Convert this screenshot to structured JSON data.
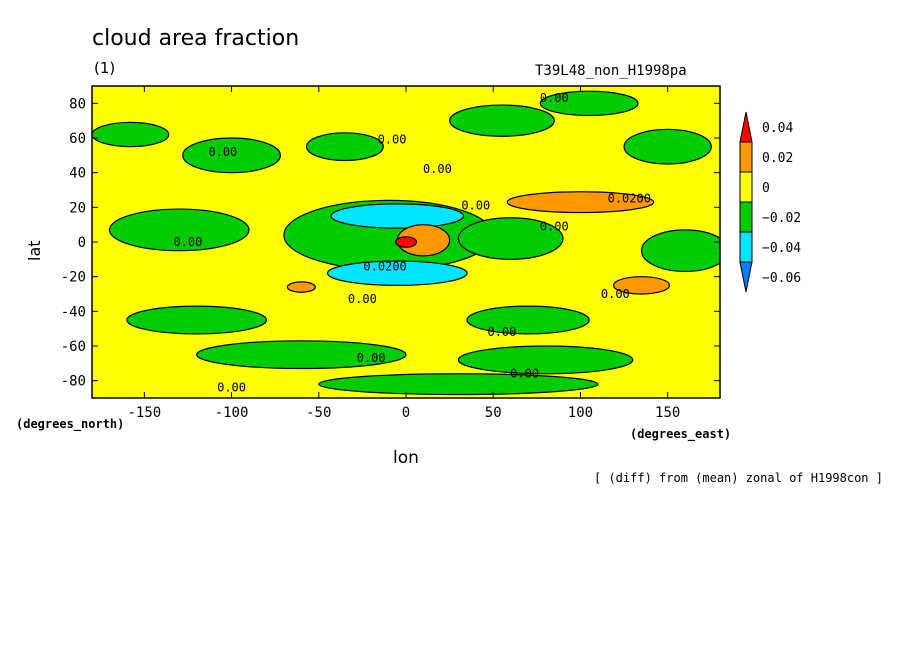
{
  "header": {
    "title": "cloud area fraction",
    "subtitle": "(1)",
    "experiment": "T39L48_non_H1998pa",
    "note": "[ (diff) from (mean) zonal of H1998con ]"
  },
  "colors": {
    "ocean_bg": "#ffff00",
    "pos1": "#ff9900",
    "pos2": "#ff0000",
    "neg1": "#00cc00",
    "neg2": "#00e5ff",
    "neg3": "#0080ff"
  },
  "chart_data": {
    "type": "heatmap",
    "title": "cloud area fraction",
    "subtitle": "(1)",
    "xlabel": "lon",
    "ylabel": "lat",
    "x_unit_label": "(degrees_east)",
    "y_unit_label": "(degrees_north)",
    "xlim": [
      -180,
      180
    ],
    "ylim": [
      -90,
      90
    ],
    "x_ticks": [
      -150,
      -100,
      -50,
      0,
      50,
      100,
      150
    ],
    "y_ticks": [
      -80,
      -60,
      -40,
      -20,
      0,
      20,
      40,
      60,
      80
    ],
    "x_tick_labels": [
      "-150",
      "-100",
      "-50",
      "0",
      "50",
      "100",
      "150"
    ],
    "y_tick_labels": [
      "-80",
      "-60",
      "-40",
      "-20",
      "0",
      "20",
      "40",
      "60",
      "80"
    ],
    "colorbar": {
      "levels": [
        0.04,
        0.02,
        0,
        -0.02,
        -0.04,
        -0.06
      ],
      "labels": [
        "0.04",
        "0.02",
        "0",
        "−0.02",
        "−0.04",
        "−0.06"
      ],
      "colors": [
        "#ff0000",
        "#ff9900",
        "#ffff00",
        "#00cc00",
        "#00e5ff",
        "#0080ff"
      ]
    },
    "contour_labels": [
      {
        "lon": 85,
        "lat": 83,
        "text": "0.00"
      },
      {
        "lon": -8,
        "lat": 59,
        "text": "0.00"
      },
      {
        "lon": -105,
        "lat": 52,
        "text": "0.00"
      },
      {
        "lon": 18,
        "lat": 42,
        "text": "0.00"
      },
      {
        "lon": 40,
        "lat": 21,
        "text": "0.00"
      },
      {
        "lon": 128,
        "lat": 25,
        "text": "0.0200"
      },
      {
        "lon": 85,
        "lat": 9,
        "text": "0.00"
      },
      {
        "lon": -125,
        "lat": 0,
        "text": "0.00"
      },
      {
        "lon": -12,
        "lat": -14,
        "text": "0.0200"
      },
      {
        "lon": -25,
        "lat": -33,
        "text": "0.00"
      },
      {
        "lon": 120,
        "lat": -30,
        "text": "0.00"
      },
      {
        "lon": 55,
        "lat": -52,
        "text": "0.00"
      },
      {
        "lon": -20,
        "lat": -67,
        "text": "0.00"
      },
      {
        "lon": 68,
        "lat": -76,
        "text": "0.00"
      },
      {
        "lon": -100,
        "lat": -84,
        "text": "0.00"
      }
    ],
    "regions": [
      {
        "level": "neg1",
        "lon": -158,
        "lat": 62,
        "rx": 22,
        "ry": 7
      },
      {
        "level": "neg1",
        "lon": -100,
        "lat": 50,
        "rx": 28,
        "ry": 10
      },
      {
        "level": "neg1",
        "lon": -35,
        "lat": 55,
        "rx": 22,
        "ry": 8
      },
      {
        "level": "neg1",
        "lon": 55,
        "lat": 70,
        "rx": 30,
        "ry": 9
      },
      {
        "level": "neg1",
        "lon": 105,
        "lat": 80,
        "rx": 28,
        "ry": 7
      },
      {
        "level": "neg1",
        "lon": 150,
        "lat": 55,
        "rx": 25,
        "ry": 10
      },
      {
        "level": "neg1",
        "lon": -10,
        "lat": 4,
        "rx": 60,
        "ry": 20
      },
      {
        "level": "neg1",
        "lon": -130,
        "lat": 7,
        "rx": 40,
        "ry": 12
      },
      {
        "level": "neg1",
        "lon": 60,
        "lat": 2,
        "rx": 30,
        "ry": 12
      },
      {
        "level": "neg1",
        "lon": 160,
        "lat": -5,
        "rx": 25,
        "ry": 12
      },
      {
        "level": "neg1",
        "lon": -120,
        "lat": -45,
        "rx": 40,
        "ry": 8
      },
      {
        "level": "neg1",
        "lon": 70,
        "lat": -45,
        "rx": 35,
        "ry": 8
      },
      {
        "level": "neg1",
        "lon": -60,
        "lat": -65,
        "rx": 60,
        "ry": 8
      },
      {
        "level": "neg1",
        "lon": 80,
        "lat": -68,
        "rx": 50,
        "ry": 8
      },
      {
        "level": "neg1",
        "lon": 30,
        "lat": -82,
        "rx": 80,
        "ry": 6
      },
      {
        "level": "neg2",
        "lon": -5,
        "lat": 15,
        "rx": 38,
        "ry": 7
      },
      {
        "level": "neg2",
        "lon": -5,
        "lat": -18,
        "rx": 40,
        "ry": 7
      },
      {
        "level": "pos1",
        "lon": 100,
        "lat": 23,
        "rx": 42,
        "ry": 6
      },
      {
        "level": "pos1",
        "lon": 10,
        "lat": 1,
        "rx": 15,
        "ry": 9
      },
      {
        "level": "pos1",
        "lon": 135,
        "lat": -25,
        "rx": 16,
        "ry": 5
      },
      {
        "level": "pos1",
        "lon": -60,
        "lat": -26,
        "rx": 8,
        "ry": 3
      },
      {
        "level": "pos2",
        "lon": 0,
        "lat": 0,
        "rx": 6,
        "ry": 3
      }
    ]
  }
}
